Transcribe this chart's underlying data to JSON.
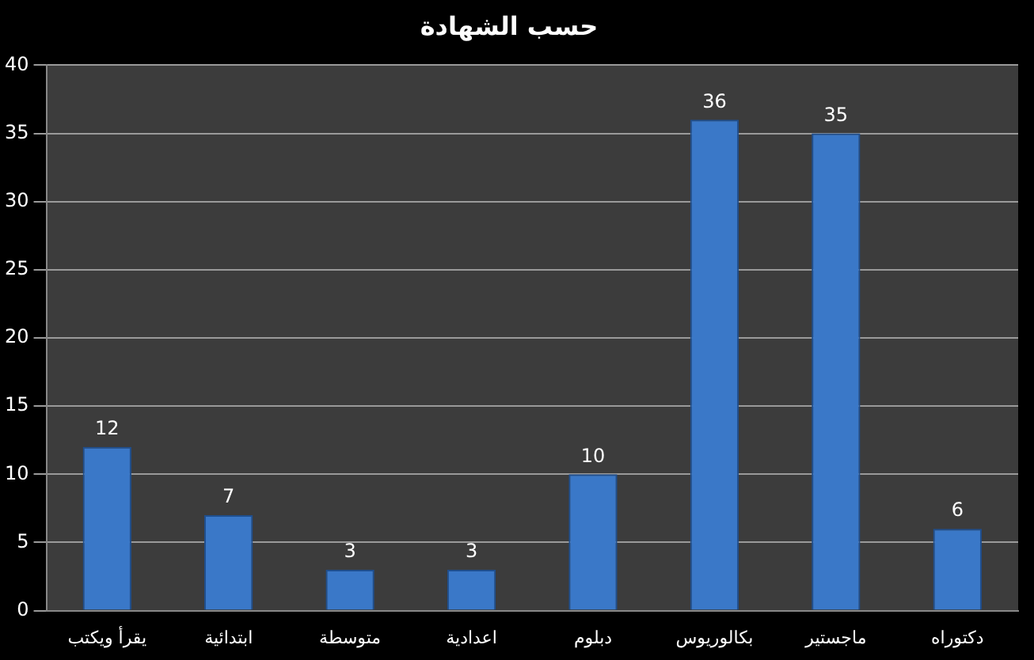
{
  "chart_data": {
    "type": "bar",
    "title": "حسب الشهادة",
    "categories": [
      "يقرأ ويكتب",
      "ابتدائية",
      "متوسطة",
      "اعدادية",
      "دبلوم",
      "بكالوريوس",
      "ماجستير",
      "دكتوراه"
    ],
    "values": [
      12,
      7,
      3,
      3,
      10,
      36,
      35,
      6
    ],
    "color": "#3a78c8",
    "ylim": [
      0,
      40
    ],
    "yticks": [
      0,
      5,
      10,
      15,
      20,
      25,
      30,
      35,
      40
    ],
    "grid": "y",
    "data_labels": true
  }
}
